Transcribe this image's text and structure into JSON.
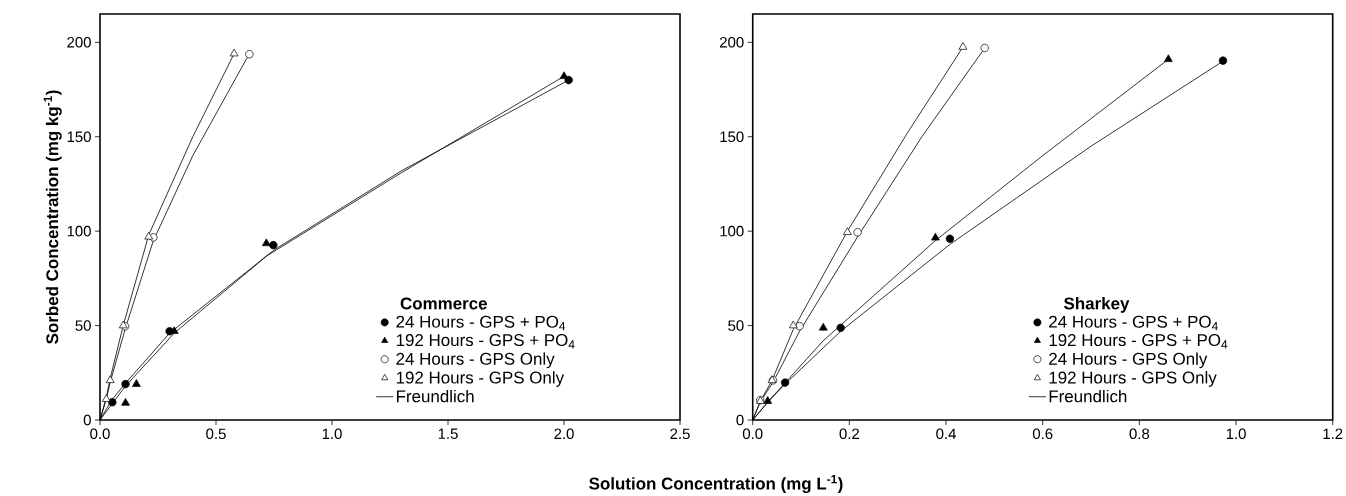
{
  "chart_data": [
    {
      "type": "scatter",
      "legend_title": "Commerce",
      "xlabel": "Solution Concentration (mg L$^{-1}$)",
      "ylabel": "Sorbed Concentration (mg kg$^{-1}$)",
      "legend": "bottom right",
      "xlim": [
        0,
        2.5
      ],
      "xticks": [
        {
          "value": 0,
          "label": "0.0"
        },
        {
          "value": 0.5,
          "label": "0.5"
        },
        {
          "value": 1,
          "label": "1.0"
        },
        {
          "value": 1.5,
          "label": "1.5"
        },
        {
          "value": 2,
          "label": "2.0"
        },
        {
          "value": 2.5,
          "label": "2.5"
        }
      ],
      "ylim": [
        0,
        215
      ],
      "yticks": [
        0,
        50,
        100,
        150,
        200
      ],
      "series": [
        {
          "name": "24 Hours - GPS + PO$_{4}$",
          "color": "#000000",
          "marker": "circle",
          "x": [
            0.053,
            0.11,
            0.3,
            0.747,
            2.02
          ],
          "values": [
            9.4,
            19,
            47,
            92.6,
            180
          ]
        },
        {
          "name": "192 Hours - GPS + PO$_{4}$",
          "color": "#000000",
          "marker": "triangle",
          "x": [
            0.11,
            0.157,
            0.32,
            0.717,
            2.0
          ],
          "values": [
            9,
            19,
            47,
            93.5,
            182
          ]
        },
        {
          "name": "24 Hours - GPS Only",
          "color": "#ffffff",
          "marker": "circle",
          "x": [
            0.108,
            0.23,
            0.644
          ],
          "values": [
            49.6,
            96.7,
            193.7
          ]
        },
        {
          "name": "192 Hours - GPS Only",
          "color": "#ffffff",
          "marker": "triangle",
          "x": [
            0.027,
            0.044,
            0.1,
            0.21,
            0.578
          ],
          "values": [
            11,
            21,
            50,
            97,
            194
          ]
        },
        {
          "type": "line",
          "color": "#000000",
          "x": [
            0,
            0.05,
            0.11,
            0.3,
            0.75,
            1.3,
            2.02
          ],
          "values": [
            0,
            10.5,
            19.5,
            46,
            90,
            132,
            180
          ]
        },
        {
          "type": "line",
          "color": "#000000",
          "x": [
            0,
            0.11,
            0.32,
            0.72,
            1.3,
            2.0
          ],
          "values": [
            0,
            18,
            46,
            87,
            131,
            182
          ]
        },
        {
          "type": "line",
          "color": "#000000",
          "x": [
            0,
            0.027,
            0.044,
            0.108,
            0.23,
            0.4,
            0.644
          ],
          "values": [
            0,
            11,
            20,
            48,
            95,
            140,
            194
          ]
        },
        {
          "name": "Freundlich",
          "type": "line",
          "color": "#000000",
          "x": [
            0,
            0.027,
            0.044,
            0.1,
            0.21,
            0.4,
            0.578
          ],
          "values": [
            0,
            12,
            22,
            50,
            98,
            150,
            194
          ]
        }
      ]
    },
    {
      "type": "scatter",
      "legend_title": "Sharkey",
      "legend": "bottom right",
      "xlim": [
        0,
        1.2
      ],
      "xticks": [
        {
          "value": 0,
          "label": "0.0"
        },
        {
          "value": 0.2,
          "label": "0.2"
        },
        {
          "value": 0.4,
          "label": "0.4"
        },
        {
          "value": 0.6,
          "label": "0.6"
        },
        {
          "value": 0.8,
          "label": "0.8"
        },
        {
          "value": 1,
          "label": "1.0"
        },
        {
          "value": 1.2,
          "label": "1.2"
        }
      ],
      "ylim": [
        0,
        215
      ],
      "yticks": [
        0,
        50,
        100,
        150,
        200
      ],
      "series": [
        {
          "name": "24 Hours - GPS + PO$_{4}$",
          "color": "#000000",
          "marker": "circle",
          "x": [
            0.067,
            0.182,
            0.408,
            0.973
          ],
          "values": [
            19.8,
            48.8,
            96,
            190.3
          ]
        },
        {
          "name": "192 Hours - GPS + PO$_{4}$",
          "color": "#000000",
          "marker": "triangle",
          "x": [
            0.031,
            0.146,
            0.378,
            0.86
          ],
          "values": [
            10,
            48.8,
            96.5,
            191
          ]
        },
        {
          "name": "24 Hours - GPS Only",
          "color": "#ffffff",
          "marker": "circle",
          "x": [
            0.0155,
            0.042,
            0.097,
            0.217,
            0.48
          ],
          "values": [
            10.5,
            21,
            49.7,
            99.4,
            197
          ]
        },
        {
          "name": "192 Hours - GPS Only",
          "color": "#ffffff",
          "marker": "triangle",
          "x": [
            0.016,
            0.04,
            0.084,
            0.196,
            0.435
          ],
          "values": [
            10,
            21,
            50,
            99.4,
            197.5
          ]
        },
        {
          "type": "line",
          "color": "#000000",
          "x": [
            0,
            0.035,
            0.067,
            0.182,
            0.408,
            0.7,
            0.973
          ],
          "values": [
            0,
            10.5,
            19,
            47,
            93,
            145,
            190
          ]
        },
        {
          "type": "line",
          "color": "#000000",
          "x": [
            0,
            0.031,
            0.146,
            0.378,
            0.6,
            0.86
          ],
          "values": [
            0,
            9.5,
            42,
            95,
            140,
            191
          ]
        },
        {
          "type": "line",
          "color": "#000000",
          "x": [
            0,
            0.0155,
            0.042,
            0.097,
            0.217,
            0.35,
            0.48
          ],
          "values": [
            0,
            9.5,
            20,
            47,
            97,
            150,
            197
          ]
        },
        {
          "name": "Freundlich",
          "type": "line",
          "color": "#000000",
          "x": [
            0,
            0.016,
            0.04,
            0.084,
            0.196,
            0.32,
            0.435
          ],
          "values": [
            0,
            10,
            21,
            48,
            100,
            152,
            197.5
          ]
        }
      ]
    }
  ]
}
